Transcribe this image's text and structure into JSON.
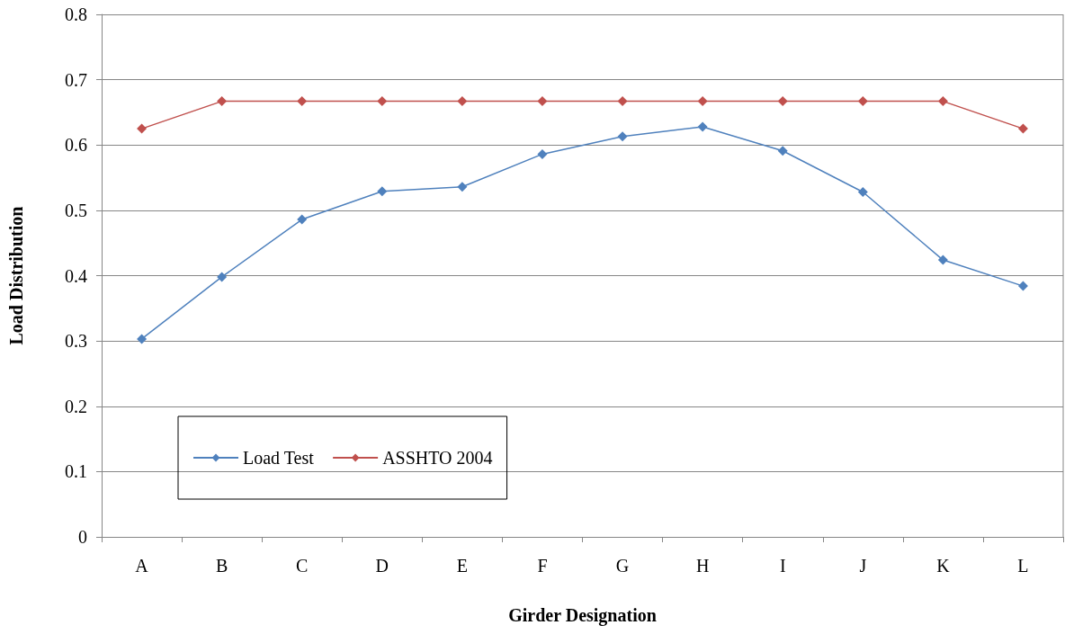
{
  "chart_data": {
    "type": "line",
    "xlabel": "Girder Designation",
    "ylabel": "Load Distribution",
    "categories": [
      "A",
      "B",
      "C",
      "D",
      "E",
      "F",
      "G",
      "H",
      "I",
      "J",
      "K",
      "L"
    ],
    "series": [
      {
        "name": "Load Test",
        "color": "#4f81bd",
        "values": [
          0.303,
          0.398,
          0.486,
          0.529,
          0.536,
          0.586,
          0.613,
          0.628,
          0.591,
          0.528,
          0.424,
          0.384
        ]
      },
      {
        "name": "ASSHTO 2004",
        "color": "#c0504d",
        "values": [
          0.625,
          0.667,
          0.667,
          0.667,
          0.667,
          0.667,
          0.667,
          0.667,
          0.667,
          0.667,
          0.667,
          0.625
        ]
      }
    ],
    "ylim": [
      0,
      0.8
    ],
    "yticks": [
      0,
      0.1,
      0.2,
      0.3,
      0.4,
      0.5,
      0.6,
      0.7,
      0.8
    ],
    "grid": "y",
    "legend": "bottom left",
    "marker": "diamond",
    "line_style": "solid"
  }
}
